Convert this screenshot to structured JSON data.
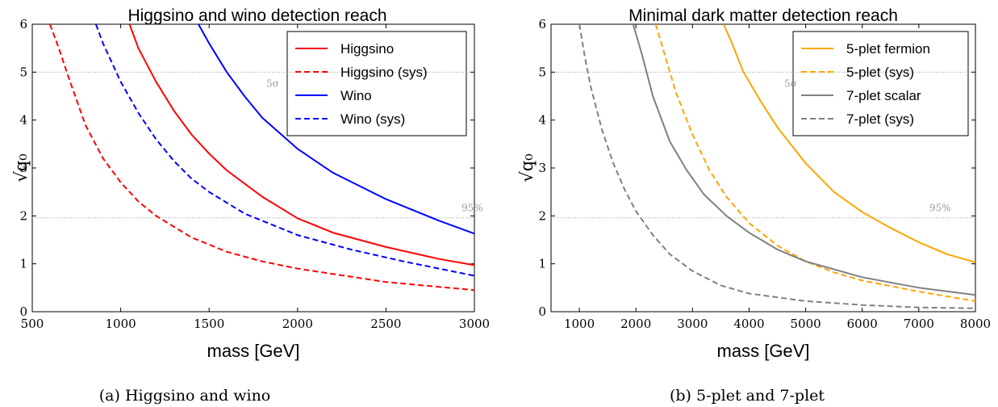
{
  "chart_data": [
    {
      "type": "line",
      "title": "Higgsino and wino detection reach",
      "xlabel": "mass [GeV]",
      "ylabel": "√q₀",
      "xlim": [
        500,
        3000
      ],
      "ylim": [
        0,
        6
      ],
      "xticks": [
        "500",
        "1000",
        "1500",
        "2000",
        "2500",
        "3000"
      ],
      "yticks": [
        "0",
        "1",
        "2",
        "3",
        "4",
        "5",
        "6"
      ],
      "hlines": [
        {
          "y": 5.0,
          "label": "5σ"
        },
        {
          "y": 1.96,
          "label": "95%"
        }
      ],
      "legend_position": "top-right",
      "caption": "(a) Higgsino and wino",
      "series": [
        {
          "name": "Higgsino",
          "color": "#ff0000",
          "dash": "solid",
          "x": [
            1050,
            1100,
            1200,
            1300,
            1400,
            1500,
            1600,
            1800,
            2000,
            2200,
            2500,
            2800,
            3000
          ],
          "y": [
            6.0,
            5.5,
            4.8,
            4.2,
            3.7,
            3.3,
            2.95,
            2.4,
            1.95,
            1.65,
            1.35,
            1.1,
            0.97
          ]
        },
        {
          "name": "Higgsino (sys)",
          "color": "#ff0000",
          "dash": "dashed",
          "x": [
            600,
            650,
            700,
            800,
            900,
            1000,
            1100,
            1200,
            1400,
            1600,
            1800,
            2000,
            2500,
            3000
          ],
          "y": [
            6.0,
            5.5,
            4.95,
            3.9,
            3.2,
            2.7,
            2.3,
            2.0,
            1.55,
            1.25,
            1.05,
            0.9,
            0.62,
            0.45
          ]
        },
        {
          "name": "Wino",
          "color": "#0000ff",
          "dash": "solid",
          "x": [
            1440,
            1500,
            1600,
            1700,
            1800,
            2000,
            2200,
            2500,
            2800,
            3000
          ],
          "y": [
            6.0,
            5.6,
            5.0,
            4.5,
            4.05,
            3.4,
            2.9,
            2.35,
            1.9,
            1.63
          ]
        },
        {
          "name": "Wino (sys)",
          "color": "#0000ff",
          "dash": "dashed",
          "x": [
            860,
            900,
            1000,
            1100,
            1200,
            1300,
            1400,
            1500,
            1700,
            2000,
            2300,
            2600,
            3000
          ],
          "y": [
            6.0,
            5.6,
            4.8,
            4.15,
            3.6,
            3.15,
            2.78,
            2.5,
            2.05,
            1.6,
            1.3,
            1.05,
            0.75
          ]
        }
      ]
    },
    {
      "type": "line",
      "title": "Minimal dark matter detection reach",
      "xlabel": "mass [GeV]",
      "ylabel": "√q₀",
      "xlim": [
        500,
        8000
      ],
      "ylim": [
        0,
        6
      ],
      "xticks": [
        "1000",
        "2000",
        "3000",
        "4000",
        "5000",
        "6000",
        "7000",
        "8000"
      ],
      "yticks": [
        "0",
        "1",
        "2",
        "3",
        "4",
        "5",
        "6"
      ],
      "hlines": [
        {
          "y": 5.0,
          "label": "5σ"
        },
        {
          "y": 1.96,
          "label": "95%"
        }
      ],
      "legend_position": "top-right",
      "caption": "(b) 5-plet and 7-plet",
      "series": [
        {
          "name": "5-plet fermion",
          "color": "#ffa500",
          "dash": "solid",
          "x": [
            3550,
            3700,
            3900,
            4200,
            4500,
            5000,
            5500,
            6000,
            6500,
            7000,
            7500,
            8000
          ],
          "y": [
            6.0,
            5.6,
            5.0,
            4.4,
            3.85,
            3.1,
            2.5,
            2.08,
            1.75,
            1.45,
            1.2,
            1.03
          ]
        },
        {
          "name": "5-plet (sys)",
          "color": "#ffa500",
          "dash": "dashed",
          "x": [
            2350,
            2500,
            2700,
            3000,
            3300,
            3600,
            4000,
            4500,
            5000,
            5500,
            6000,
            7000,
            8000
          ],
          "y": [
            6.0,
            5.4,
            4.6,
            3.7,
            2.95,
            2.4,
            1.85,
            1.38,
            1.05,
            0.82,
            0.65,
            0.42,
            0.22
          ]
        },
        {
          "name": "7-plet scalar",
          "color": "#808080",
          "dash": "solid",
          "x": [
            1950,
            2100,
            2300,
            2600,
            2900,
            3200,
            3600,
            4000,
            4500,
            5000,
            6000,
            7000,
            8000
          ],
          "y": [
            6.0,
            5.4,
            4.5,
            3.55,
            2.95,
            2.45,
            2.0,
            1.65,
            1.3,
            1.05,
            0.72,
            0.5,
            0.35
          ]
        },
        {
          "name": "7-plet (sys)",
          "color": "#808080",
          "dash": "dashed",
          "x": [
            1000,
            1100,
            1200,
            1400,
            1600,
            1800,
            2000,
            2300,
            2600,
            3000,
            3500,
            4000,
            5000,
            6000,
            7000,
            8000
          ],
          "y": [
            6.0,
            5.3,
            4.7,
            3.8,
            3.1,
            2.55,
            2.1,
            1.6,
            1.2,
            0.85,
            0.55,
            0.38,
            0.22,
            0.14,
            0.09,
            0.07
          ]
        }
      ]
    }
  ]
}
